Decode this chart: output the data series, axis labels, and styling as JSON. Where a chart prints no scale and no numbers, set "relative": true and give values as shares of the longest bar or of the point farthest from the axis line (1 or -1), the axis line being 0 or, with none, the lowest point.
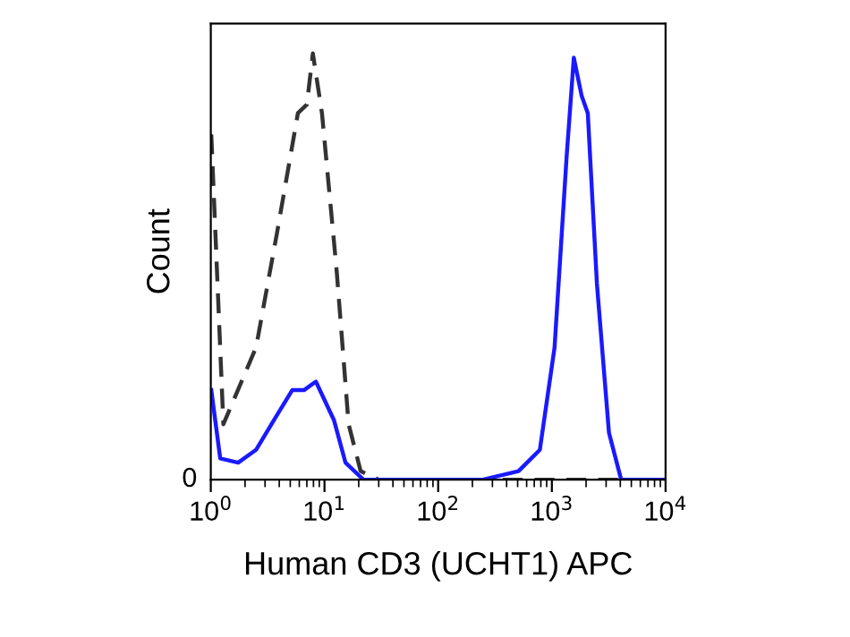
{
  "chart_data": {
    "type": "line",
    "xlabel": "Human CD3 (UCHT1) APC",
    "ylabel": "Count",
    "log": "x",
    "xlim": [
      1,
      10000
    ],
    "xticks": [
      {
        "value": 1,
        "label": "10$^{0}$"
      },
      {
        "value": 10,
        "label": "10$^{1}$"
      },
      {
        "value": 100,
        "label": "10$^{2}$"
      },
      {
        "value": 1000,
        "label": "10$^{3}$"
      },
      {
        "value": 10000,
        "label": "10$^{4}$"
      }
    ],
    "annotations": [
      "0"
    ],
    "relative": true,
    "grid": false,
    "legend": false,
    "marker": "none",
    "series": [
      {
        "color": "#333333",
        "line_style": "dashed",
        "x": [
          1.01,
          1.29,
          2.5,
          3.83,
          5.84,
          7.0,
          7.9,
          9.5,
          12.8,
          16.3,
          20.8,
          30,
          100,
          1000,
          10000
        ],
        "values": [
          0.81,
          0.13,
          0.31,
          0.58,
          0.86,
          0.88,
          1.0,
          0.86,
          0.49,
          0.13,
          0.02,
          0.0,
          0.0,
          0.0,
          0.0
        ]
      },
      {
        "color": "#1a1aff",
        "line_style": "solid",
        "x": [
          1.01,
          1.21,
          1.74,
          2.5,
          3.6,
          5.2,
          6.6,
          8.4,
          12.1,
          15.3,
          22,
          100,
          247,
          509,
          784,
          1056,
          1350,
          1560,
          1830,
          2070,
          2490,
          3180,
          4070,
          10000
        ],
        "values": [
          0.21,
          0.05,
          0.04,
          0.07,
          0.14,
          0.21,
          0.21,
          0.23,
          0.14,
          0.04,
          0.0,
          0.0,
          0.0,
          0.02,
          0.07,
          0.31,
          0.76,
          0.99,
          0.9,
          0.86,
          0.46,
          0.11,
          0.0,
          0.0
        ]
      }
    ]
  }
}
